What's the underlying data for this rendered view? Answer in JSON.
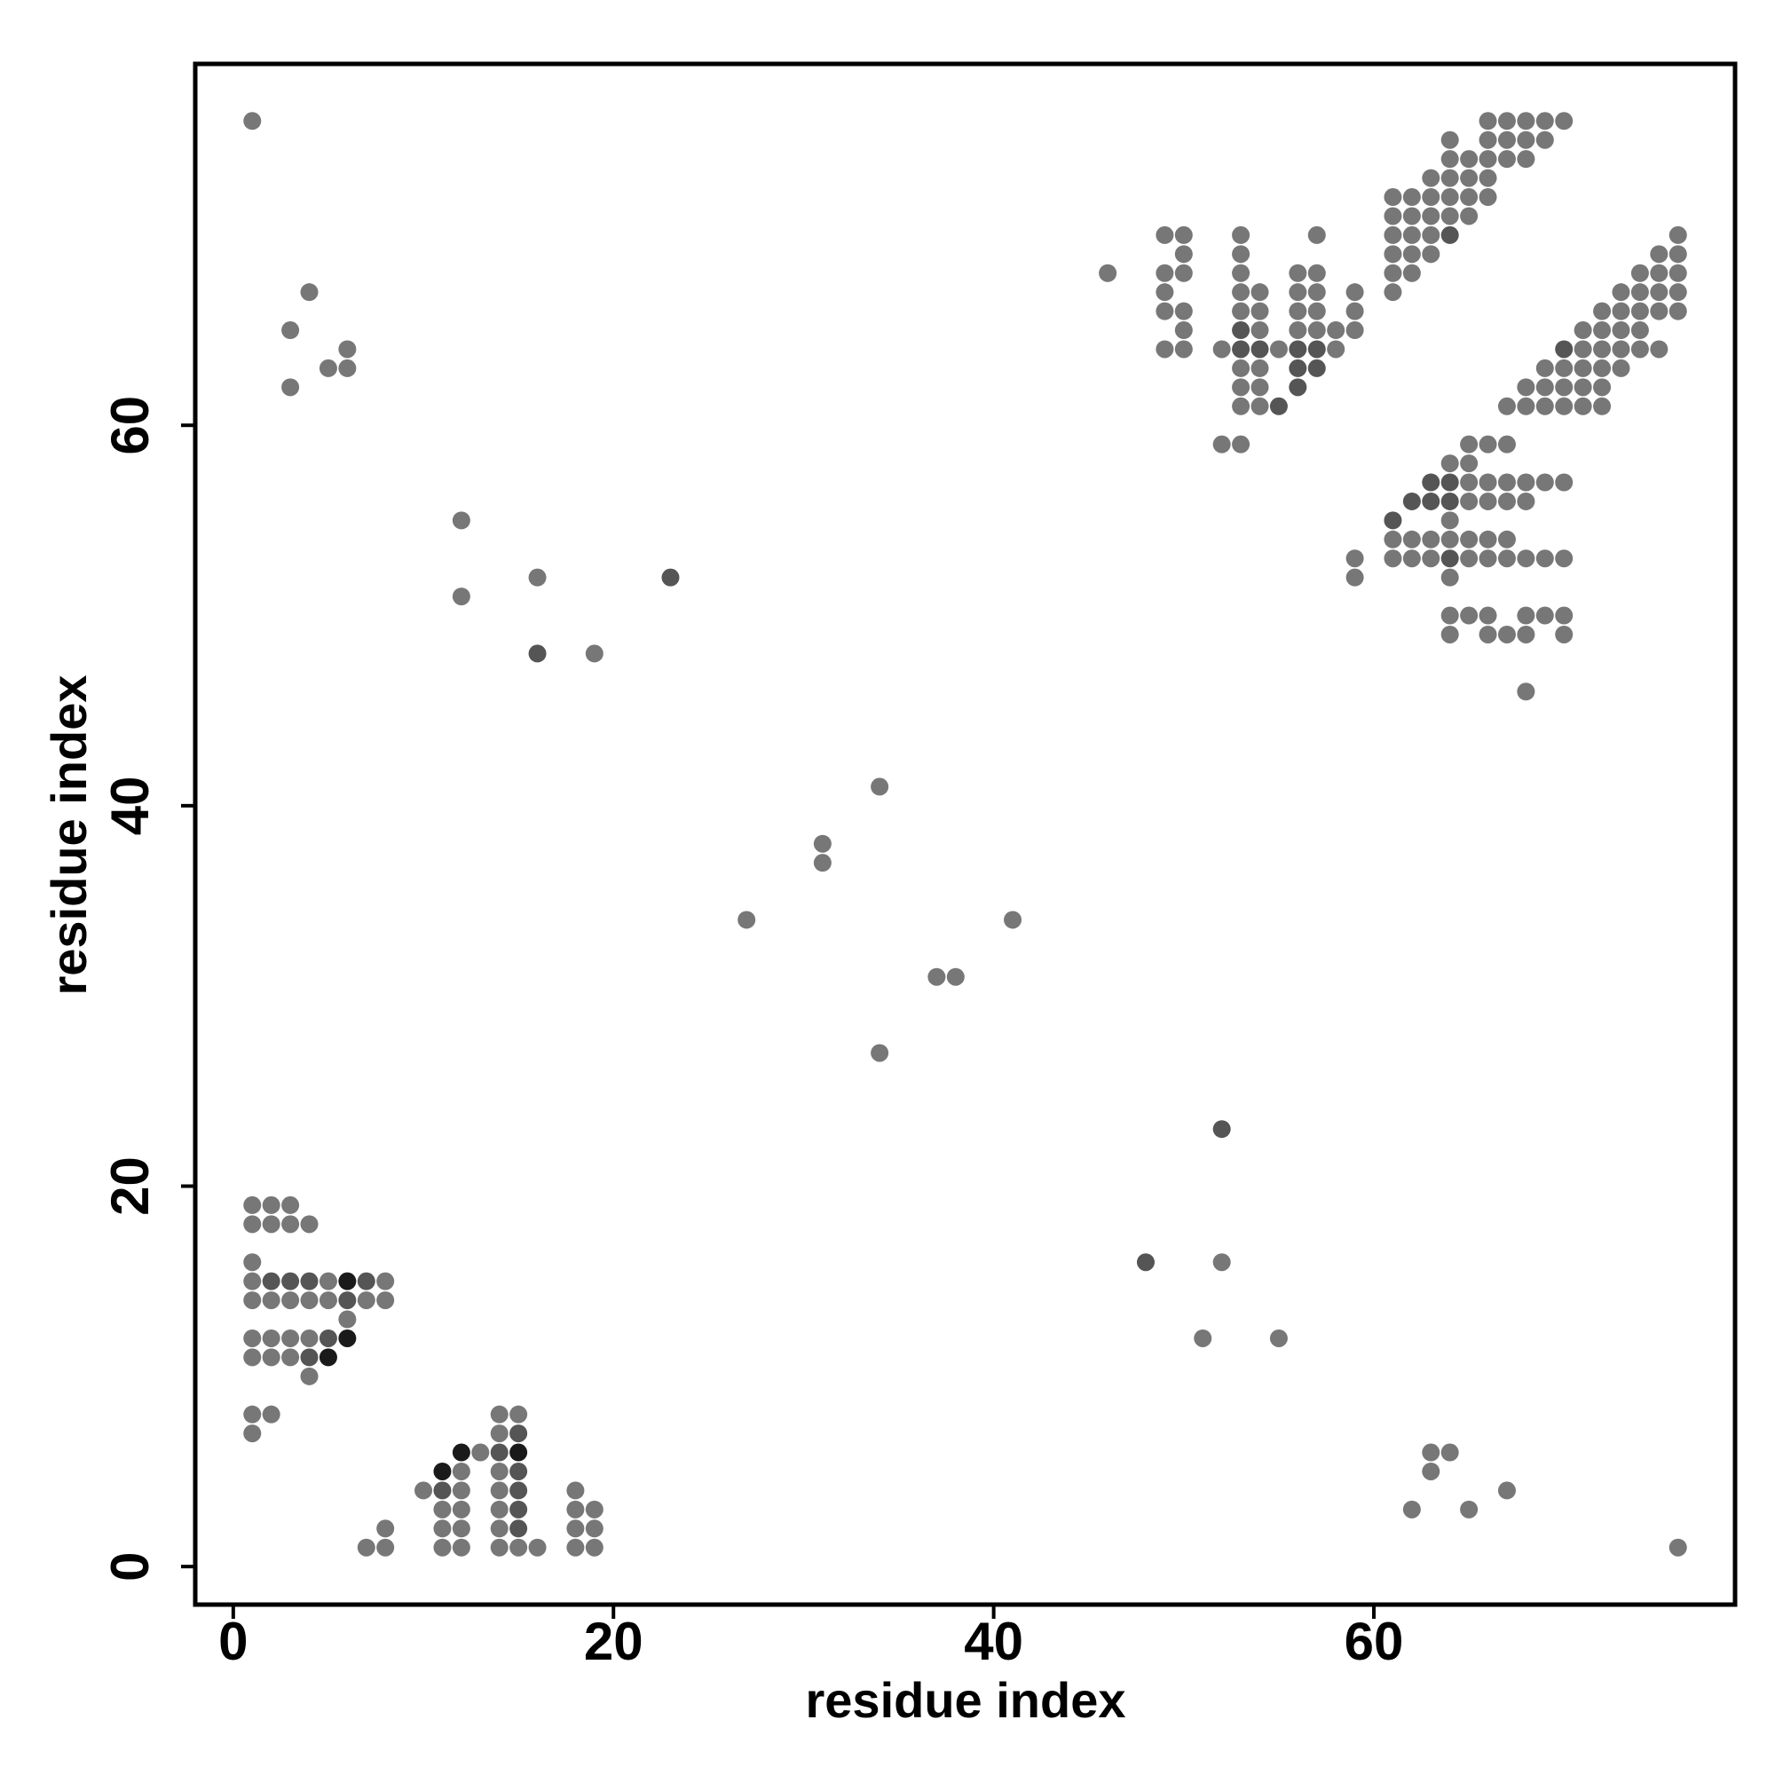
{
  "chart_data": {
    "type": "scatter",
    "xlabel": "residue index",
    "ylabel": "residue index",
    "xlim": [
      -2,
      79
    ],
    "ylim": [
      -2,
      79
    ],
    "xticks": [
      0,
      20,
      40,
      60
    ],
    "yticks": [
      0,
      20,
      40,
      60
    ],
    "grid": false,
    "series": [
      {
        "color": "#777777",
        "x": [
          1,
          4,
          3,
          3,
          5,
          6,
          6,
          12,
          12,
          16,
          19,
          34,
          31,
          31,
          27,
          41,
          37,
          38,
          34,
          52,
          51,
          55,
          63,
          64,
          63,
          62,
          65,
          67,
          76,
          1,
          2,
          3,
          1,
          2,
          3,
          4,
          1,
          1,
          5,
          8,
          1,
          2,
          3,
          4,
          5,
          7,
          8,
          6,
          1,
          2,
          3,
          4,
          1,
          2,
          3,
          4,
          1,
          2,
          1,
          14,
          15,
          14,
          13,
          12,
          14,
          10,
          12,
          14,
          18,
          11,
          12,
          14,
          18,
          19,
          8,
          11,
          12,
          14,
          18,
          19,
          7,
          8,
          11,
          12,
          14,
          15,
          16,
          18,
          19,
          46,
          49,
          49,
          49,
          49,
          49,
          50,
          50,
          50,
          50,
          50,
          50,
          52,
          52,
          53,
          53,
          53,
          53,
          53,
          53,
          53,
          53,
          53,
          54,
          54,
          54,
          54,
          54,
          54,
          55,
          56,
          56,
          56,
          56,
          57,
          57,
          57,
          57,
          57,
          58,
          58,
          59,
          59,
          59,
          59,
          59,
          66,
          67,
          68,
          69,
          70,
          64,
          66,
          67,
          68,
          69,
          64,
          65,
          66,
          67,
          68,
          63,
          64,
          65,
          66,
          61,
          62,
          63,
          64,
          65,
          66,
          61,
          62,
          63,
          64,
          65,
          61,
          62,
          63,
          61,
          62,
          63,
          61,
          62,
          61,
          76,
          75,
          76,
          74,
          75,
          76,
          73,
          74,
          75,
          76,
          72,
          73,
          74,
          75,
          76,
          71,
          72,
          73,
          74,
          71,
          72,
          73,
          74,
          75,
          69,
          70,
          71,
          72,
          73,
          68,
          69,
          70,
          71,
          72,
          67,
          68,
          69,
          70,
          71,
          72,
          65,
          66,
          67,
          64,
          65,
          65,
          66,
          67,
          68,
          69,
          70,
          65,
          66,
          67,
          68,
          64,
          61,
          62,
          63,
          64,
          65,
          66,
          67,
          61,
          62,
          63,
          65,
          66,
          67,
          68,
          69,
          70,
          64,
          64,
          65,
          66,
          68,
          69,
          70,
          64,
          66,
          67,
          68,
          70,
          68
        ],
        "values": [
          76,
          67,
          65,
          62,
          63,
          64,
          63,
          55,
          51,
          52,
          48,
          41,
          38,
          37,
          34,
          34,
          31,
          31,
          27,
          16,
          12,
          12,
          6,
          6,
          5,
          3,
          3,
          4,
          1,
          19,
          19,
          19,
          18,
          18,
          18,
          18,
          16,
          15,
          15,
          15,
          14,
          14,
          14,
          14,
          14,
          14,
          14,
          13,
          12,
          12,
          12,
          12,
          11,
          11,
          11,
          10,
          8,
          8,
          7,
          8,
          8,
          7,
          6,
          5,
          5,
          4,
          4,
          4,
          4,
          3,
          3,
          3,
          3,
          3,
          2,
          2,
          2,
          2,
          2,
          2,
          1,
          1,
          1,
          1,
          1,
          1,
          1,
          1,
          1,
          68,
          70,
          68,
          67,
          66,
          64,
          70,
          69,
          68,
          66,
          65,
          64,
          64,
          59,
          70,
          69,
          68,
          67,
          66,
          63,
          62,
          61,
          59,
          67,
          66,
          65,
          63,
          62,
          61,
          64,
          68,
          67,
          66,
          65,
          70,
          68,
          67,
          66,
          65,
          65,
          64,
          67,
          66,
          65,
          53,
          52,
          76,
          76,
          76,
          76,
          76,
          75,
          75,
          75,
          75,
          75,
          74,
          74,
          74,
          74,
          74,
          73,
          73,
          73,
          73,
          72,
          72,
          72,
          72,
          72,
          72,
          71,
          71,
          71,
          71,
          71,
          70,
          70,
          70,
          69,
          69,
          69,
          68,
          68,
          67,
          70,
          69,
          69,
          68,
          68,
          68,
          67,
          67,
          67,
          67,
          66,
          66,
          66,
          66,
          66,
          65,
          65,
          65,
          65,
          64,
          64,
          64,
          64,
          64,
          63,
          63,
          63,
          63,
          63,
          62,
          62,
          62,
          62,
          62,
          61,
          61,
          61,
          61,
          61,
          61,
          59,
          59,
          59,
          58,
          58,
          57,
          57,
          57,
          57,
          57,
          57,
          56,
          56,
          56,
          56,
          55,
          54,
          54,
          54,
          54,
          54,
          54,
          54,
          53,
          53,
          53,
          53,
          53,
          53,
          53,
          53,
          53,
          52,
          50,
          50,
          50,
          50,
          50,
          50,
          49,
          49,
          49,
          49,
          49,
          46
        ]
      },
      {
        "color": "#555555",
        "x": [
          16,
          23,
          52,
          48,
          2,
          3,
          4,
          7,
          6,
          5,
          4,
          15,
          14,
          15,
          11,
          15,
          15,
          15,
          53,
          53,
          54,
          55,
          56,
          56,
          56,
          57,
          57,
          64,
          70,
          63,
          64,
          62,
          63,
          64,
          61,
          64
        ],
        "values": [
          48,
          52,
          23,
          16,
          15,
          15,
          15,
          15,
          14,
          12,
          11,
          7,
          6,
          5,
          4,
          4,
          3,
          2,
          65,
          64,
          64,
          61,
          64,
          63,
          62,
          64,
          63,
          70,
          64,
          57,
          57,
          56,
          56,
          56,
          55,
          53
        ]
      },
      {
        "color": "#1a1a1a",
        "x": [
          6,
          6,
          5,
          12,
          15,
          11
        ],
        "values": [
          15,
          12,
          11,
          6,
          6,
          5
        ]
      }
    ]
  }
}
